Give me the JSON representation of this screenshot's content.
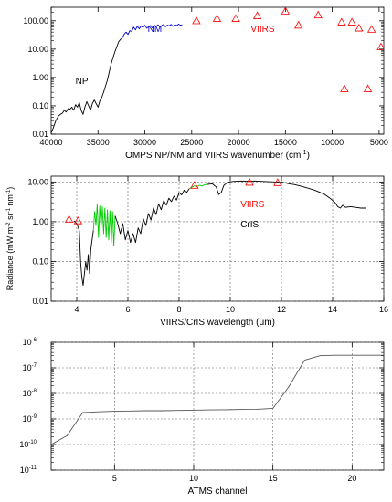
{
  "chart_data": [
    {
      "type": "line",
      "xlabel": "OMPS NP/NM and VIIRS  wavenumber (cm",
      "xlabel_sup": "-1",
      "xlabel_end": ")",
      "xlim": [
        40000,
        4500
      ],
      "xticks": [
        "40000",
        "35000",
        "30000",
        "25000",
        "20000",
        "15000",
        "10000",
        "5000"
      ],
      "xtick_values": [
        40000,
        35000,
        30000,
        25000,
        20000,
        15000,
        10000,
        5000
      ],
      "ylim": [
        0.01,
        300
      ],
      "yscale": "log",
      "yticks": [
        "0.01",
        "0.10",
        "1.00",
        "10.00",
        "100.00"
      ],
      "ytick_values": [
        0.01,
        0.1,
        1,
        10,
        100
      ],
      "grid": false,
      "colors": {
        "NP": "#000000",
        "NM": "#0000cc",
        "VIIRS": "#ff0000"
      },
      "annotations": [
        {
          "text": "NP",
          "x": 37400,
          "y": 0.6,
          "color": "#000000"
        },
        {
          "text": "NM",
          "x": 29700,
          "y": 40,
          "color": "#0000cc"
        },
        {
          "text": "VIIRS",
          "x": 18700,
          "y": 40,
          "color": "#ff0000"
        }
      ],
      "series": [
        {
          "id": "NP",
          "style": "line",
          "color": "#000000",
          "x": [
            40000,
            39800,
            39500,
            39200,
            39000,
            38800,
            38600,
            38400,
            38200,
            38000,
            37800,
            37600,
            37400,
            37200,
            37000,
            36800,
            36600,
            36400,
            36200,
            36000,
            35800,
            35600,
            35400,
            35200,
            35000,
            34800,
            34600,
            34400,
            34200,
            34000,
            33800,
            33600,
            33400,
            33200,
            33000,
            32800,
            32600,
            32400
          ],
          "y": [
            0.011,
            0.016,
            0.03,
            0.045,
            0.05,
            0.055,
            0.07,
            0.06,
            0.08,
            0.075,
            0.09,
            0.07,
            0.11,
            0.09,
            0.13,
            0.07,
            0.05,
            0.09,
            0.14,
            0.1,
            0.07,
            0.12,
            0.16,
            0.12,
            0.09,
            0.15,
            0.2,
            0.3,
            0.5,
            0.8,
            1.6,
            3.0,
            5.0,
            8.0,
            12.0,
            18.0,
            22.0,
            25.0
          ]
        },
        {
          "id": "NM",
          "style": "line",
          "color": "#0000cc",
          "x": [
            32400,
            32200,
            32000,
            31800,
            31600,
            31400,
            31200,
            31000,
            30800,
            30600,
            30400,
            30200,
            30000,
            29800,
            29600,
            29400,
            29200,
            29000,
            28800,
            28600,
            28400,
            28200,
            28000,
            27800,
            27600,
            27400,
            27200,
            27000,
            26800,
            26600,
            26400,
            26200,
            26000
          ],
          "y": [
            25,
            34,
            40,
            33,
            45,
            42,
            60,
            48,
            65,
            52,
            66,
            58,
            70,
            55,
            62,
            68,
            56,
            70,
            63,
            72,
            60,
            68,
            74,
            62,
            70,
            66,
            75,
            64,
            72,
            68,
            76,
            70,
            72
          ]
        },
        {
          "id": "VIIRS-markers",
          "style": "triangle",
          "color": "#ff0000",
          "x": [
            24500,
            22300,
            20300,
            18000,
            15000,
            13600,
            11500,
            9000,
            8700,
            7900,
            7150,
            6200,
            5800,
            4800
          ],
          "y": [
            100,
            120,
            120,
            150,
            220,
            70,
            160,
            90,
            0.4,
            90,
            55,
            0.4,
            50,
            12
          ]
        }
      ]
    },
    {
      "type": "line",
      "xlabel": "VIIRS/CrIS wavelength (",
      "xlabel_unit": "μm",
      "xlabel_end": ")",
      "ylabel": "Radiance (mW m",
      "ylabel_full": "Radiance (mW m-2 sr-1 nm-1)",
      "xlim": [
        3,
        16
      ],
      "xticks": [
        "4",
        "6",
        "8",
        "10",
        "12",
        "14",
        "16"
      ],
      "xtick_values": [
        4,
        6,
        8,
        10,
        12,
        14,
        16
      ],
      "ylim": [
        0.01,
        14
      ],
      "yscale": "log",
      "yticks": [
        "0.01",
        "0.10",
        "1.00",
        "10.00"
      ],
      "ytick_values": [
        0.01,
        0.1,
        1,
        10
      ],
      "grid": true,
      "colors": {
        "CrIS": "#000000",
        "CrIS-highlight": "#00cc00",
        "VIIRS": "#ff0000"
      },
      "annotations": [
        {
          "text": "VIIRS",
          "x": 10.4,
          "y": 2.3,
          "color": "#ff0000"
        },
        {
          "text": "CrIS",
          "x": 10.4,
          "y": 0.72,
          "color": "#000000"
        }
      ],
      "series": [
        {
          "id": "CrIS-SW",
          "style": "line",
          "color": "#000000",
          "x": [
            3.9,
            4.0,
            4.1,
            4.15,
            4.2,
            4.25,
            4.3,
            4.35,
            4.4,
            4.45,
            4.5,
            4.55,
            4.6,
            4.65
          ],
          "y": [
            1.05,
            0.9,
            0.6,
            0.1,
            0.04,
            0.025,
            0.05,
            0.1,
            0.06,
            0.15,
            0.05,
            0.2,
            0.35,
            0.6
          ]
        },
        {
          "id": "CrIS-MW-green",
          "style": "line",
          "color": "#00cc00",
          "x": [
            4.65,
            4.7,
            4.75,
            4.8,
            4.85,
            4.9,
            4.95,
            5.0,
            5.05,
            5.1,
            5.15,
            5.2,
            5.25,
            5.3,
            5.35,
            5.4,
            5.45,
            5.5
          ],
          "y": [
            0.6,
            1.8,
            0.8,
            2.8,
            0.4,
            2.5,
            0.7,
            2.4,
            0.5,
            2.2,
            0.4,
            2.0,
            0.35,
            1.9,
            0.3,
            1.8,
            0.25,
            1.4
          ]
        },
        {
          "id": "CrIS-MW-black",
          "style": "line",
          "color": "#000000",
          "x": [
            5.5,
            5.6,
            5.7,
            5.8,
            5.9,
            6.0,
            6.1,
            6.2,
            6.3,
            6.4,
            6.5,
            6.6,
            6.7,
            6.8,
            6.9,
            7.0,
            7.1,
            7.2,
            7.3,
            7.4,
            7.5,
            7.6,
            7.7,
            7.8,
            7.9,
            8.0,
            8.1,
            8.2,
            8.3,
            8.4
          ],
          "y": [
            1.4,
            0.9,
            0.5,
            0.9,
            0.35,
            0.6,
            0.3,
            0.5,
            0.3,
            0.7,
            0.5,
            1.2,
            0.8,
            1.6,
            1.1,
            2.2,
            1.5,
            2.8,
            2.0,
            3.4,
            2.6,
            3.9,
            3.2,
            4.4,
            3.5,
            5.4,
            4.7,
            6.2,
            5.5,
            6.8
          ]
        },
        {
          "id": "CrIS-window-green",
          "style": "line",
          "color": "#00cc00",
          "x": [
            8.4,
            8.5,
            8.6,
            8.7,
            8.8,
            8.9,
            9.0,
            9.1
          ],
          "y": [
            6.8,
            7.4,
            8.0,
            7.6,
            8.3,
            7.9,
            8.5,
            8.7
          ]
        },
        {
          "id": "CrIS-LW",
          "style": "line",
          "color": "#000000",
          "x": [
            9.1,
            9.3,
            9.45,
            9.55,
            9.65,
            9.75,
            9.9,
            10.1,
            10.4,
            10.7,
            11.0,
            11.3,
            11.6,
            11.9,
            12.1,
            12.3,
            12.5,
            12.7,
            12.9,
            13.1,
            13.3,
            13.5,
            13.7,
            13.9,
            14.1,
            14.2,
            14.3,
            14.4,
            14.5,
            14.7,
            14.9,
            15.1,
            15.3
          ],
          "y": [
            8.7,
            9.0,
            7.5,
            4.8,
            5.5,
            8.2,
            9.8,
            10.3,
            10.6,
            10.5,
            10.6,
            10.3,
            10.1,
            9.9,
            9.6,
            9.0,
            8.6,
            8.0,
            7.4,
            6.8,
            6.2,
            5.5,
            4.8,
            3.9,
            3.0,
            2.4,
            2.2,
            2.6,
            2.3,
            2.4,
            2.3,
            2.2,
            2.2
          ]
        },
        {
          "id": "VIIRS-markers",
          "style": "triangle",
          "color": "#ff0000",
          "x": [
            3.7,
            4.05,
            8.6,
            10.75,
            11.85
          ],
          "y": [
            1.15,
            1.05,
            8.2,
            9.8,
            9.6
          ]
        }
      ]
    },
    {
      "type": "line",
      "xlabel": "ATMS channel",
      "xlim": [
        1,
        22
      ],
      "xticks": [
        "5",
        "10",
        "15",
        "20"
      ],
      "xtick_values": [
        5,
        10,
        15,
        20
      ],
      "ylim": [
        1e-11,
        1e-06
      ],
      "yscale": "log",
      "ytick_mantissa": "10",
      "ytick_exponents": [
        "-11",
        "-10",
        "-9",
        "-8",
        "-7",
        "-6"
      ],
      "ytick_values": [
        1e-11,
        1e-10,
        1e-09,
        1e-08,
        1e-07,
        1e-06
      ],
      "grid": true,
      "colors": {
        "ATMS": "#555555"
      },
      "series": [
        {
          "id": "ATMS",
          "style": "line",
          "color": "#555555",
          "x": [
            1,
            2,
            3,
            4,
            5,
            6,
            7,
            8,
            9,
            10,
            11,
            12,
            13,
            14,
            15,
            16,
            17,
            18,
            19,
            20,
            21,
            22
          ],
          "y": [
            1e-10,
            2.2e-10,
            1.8e-09,
            1.9e-09,
            2e-09,
            2.05e-09,
            2.1e-09,
            2.1e-09,
            2.15e-09,
            2.2e-09,
            2.25e-09,
            2.3e-09,
            2.35e-09,
            2.4e-09,
            2.6e-09,
            1.8e-08,
            2e-07,
            3e-07,
            3.1e-07,
            3.1e-07,
            3.1e-07,
            3.1e-07
          ]
        }
      ]
    }
  ]
}
